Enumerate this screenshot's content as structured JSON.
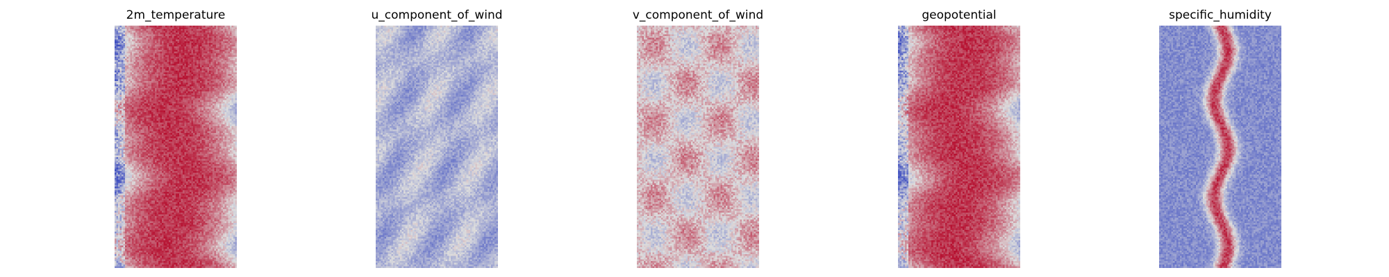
{
  "chart_data": [
    {
      "type": "heatmap",
      "title": "2m_temperature",
      "colormap": "coolwarm",
      "pattern": "warm-band",
      "colors": {
        "low": "#3b4cc0",
        "mid": "#dddddd",
        "high": "#b40426"
      }
    },
    {
      "type": "heatmap",
      "title": "u_component_of_wind",
      "colormap": "coolwarm",
      "pattern": "mostly-negative",
      "colors": {
        "low": "#3b4cc0",
        "mid": "#dddddd",
        "high": "#b40426"
      }
    },
    {
      "type": "heatmap",
      "title": "v_component_of_wind",
      "colormap": "coolwarm",
      "pattern": "near-zero",
      "colors": {
        "low": "#3b4cc0",
        "mid": "#dddddd",
        "high": "#b40426"
      }
    },
    {
      "type": "heatmap",
      "title": "geopotential",
      "colormap": "coolwarm",
      "pattern": "warm-band",
      "colors": {
        "low": "#3b4cc0",
        "mid": "#dddddd",
        "high": "#b40426"
      }
    },
    {
      "type": "heatmap",
      "title": "specific_humidity",
      "colormap": "coolwarm",
      "pattern": "narrow-band",
      "colors": {
        "low": "#3b4cc0",
        "mid": "#dddddd",
        "high": "#b40426"
      }
    }
  ]
}
